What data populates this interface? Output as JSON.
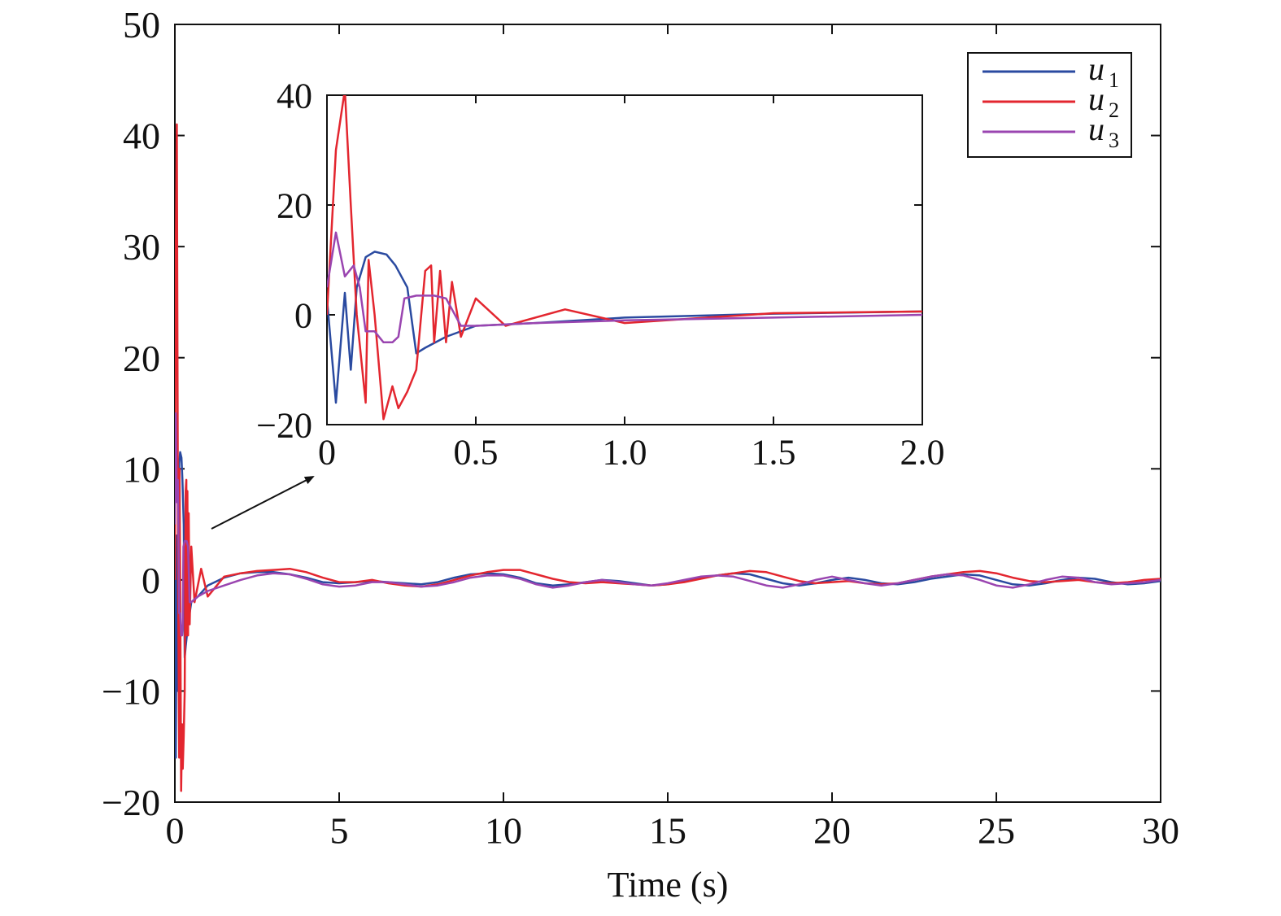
{
  "chart_data": {
    "type": "line",
    "xlabel": "Time (s)",
    "ylabel": "",
    "xlim": [
      0,
      30
    ],
    "ylim": [
      -20,
      50
    ],
    "xticks": [
      0,
      5,
      10,
      15,
      20,
      25,
      30
    ],
    "xtick_labels": [
      "0",
      "5",
      "10",
      "15",
      "20",
      "25",
      "30"
    ],
    "yticks": [
      -20,
      -10,
      0,
      10,
      20,
      30,
      40,
      50
    ],
    "ytick_labels": [
      "−20",
      "−10",
      "0",
      "10",
      "20",
      "30",
      "40",
      "50"
    ],
    "legend": {
      "placement": "top-right"
    },
    "series": [
      {
        "name": "u",
        "subscript": "1",
        "color": "#2a4aa0",
        "x": [
          0,
          0.03,
          0.06,
          0.08,
          0.1,
          0.13,
          0.16,
          0.2,
          0.23,
          0.27,
          0.3,
          0.33,
          0.4,
          0.5,
          0.7,
          1.0,
          1.5,
          2.0,
          2.5,
          3.0,
          3.5,
          4.0,
          4.5,
          5.0,
          5.5,
          6.0,
          6.5,
          7.0,
          7.5,
          8.0,
          8.5,
          9.0,
          9.5,
          10.0,
          10.5,
          11.0,
          11.5,
          12.0,
          12.5,
          13.0,
          13.5,
          14.0,
          14.5,
          15.0,
          15.5,
          16.0,
          16.5,
          17.0,
          17.5,
          18.0,
          18.5,
          19.0,
          19.5,
          20.0,
          20.5,
          21.0,
          21.5,
          22.0,
          22.5,
          23.0,
          23.5,
          24.0,
          24.5,
          25.0,
          25.5,
          26.0,
          26.5,
          27.0,
          27.5,
          28.0,
          28.5,
          29.0,
          29.5,
          30.0
        ],
        "y": [
          3,
          -16,
          4,
          -10,
          5,
          10.5,
          11.5,
          11,
          9,
          5,
          -7,
          -6,
          -4,
          -2,
          -1.5,
          -0.5,
          0.2,
          0.6,
          0.7,
          0.7,
          0.5,
          0.2,
          -0.2,
          -0.3,
          -0.2,
          -0.1,
          -0.2,
          -0.3,
          -0.4,
          -0.2,
          0.2,
          0.5,
          0.6,
          0.5,
          0.2,
          -0.3,
          -0.5,
          -0.4,
          -0.2,
          0,
          -0.1,
          -0.3,
          -0.5,
          -0.4,
          -0.1,
          0.2,
          0.4,
          0.6,
          0.5,
          0.1,
          -0.3,
          -0.5,
          -0.3,
          0,
          0.2,
          0,
          -0.3,
          -0.4,
          -0.2,
          0.1,
          0.3,
          0.5,
          0.4,
          0,
          -0.4,
          -0.5,
          -0.3,
          0,
          0.2,
          0.1,
          -0.2,
          -0.4,
          -0.3,
          -0.1
        ]
      },
      {
        "name": "u",
        "subscript": "2",
        "color": "#e3262f",
        "x": [
          0,
          0.03,
          0.06,
          0.08,
          0.1,
          0.13,
          0.14,
          0.16,
          0.19,
          0.22,
          0.24,
          0.27,
          0.3,
          0.33,
          0.35,
          0.36,
          0.38,
          0.4,
          0.42,
          0.45,
          0.5,
          0.6,
          0.8,
          1.0,
          1.5,
          2.0,
          2.5,
          3.0,
          3.5,
          4.0,
          4.5,
          5.0,
          5.5,
          6.0,
          6.5,
          7.0,
          7.5,
          8.0,
          8.5,
          9.0,
          9.5,
          10.0,
          10.5,
          11.0,
          11.5,
          12.0,
          12.5,
          13.0,
          13.5,
          14.0,
          14.5,
          15.0,
          15.5,
          16.0,
          16.5,
          17.0,
          17.5,
          18.0,
          18.5,
          19.0,
          19.5,
          20.0,
          20.5,
          21.0,
          21.5,
          22.0,
          22.5,
          23.0,
          23.5,
          24.0,
          24.5,
          25.0,
          25.5,
          26.0,
          26.5,
          27.0,
          27.5,
          28.0,
          28.5,
          29.0,
          29.5,
          30.0
        ],
        "y": [
          0,
          30,
          41,
          20,
          0,
          -16,
          10,
          0,
          -19,
          -13,
          -17,
          -14,
          -10,
          8,
          9,
          -5,
          8,
          -5,
          6,
          -4,
          3,
          -2,
          1,
          -1.5,
          0.3,
          0.6,
          0.8,
          0.9,
          1.0,
          0.7,
          0.2,
          -0.2,
          -0.2,
          0,
          -0.3,
          -0.5,
          -0.6,
          -0.4,
          0,
          0.4,
          0.7,
          0.9,
          0.9,
          0.5,
          0.1,
          -0.2,
          -0.3,
          -0.2,
          -0.3,
          -0.4,
          -0.5,
          -0.4,
          -0.2,
          0.1,
          0.4,
          0.6,
          0.8,
          0.7,
          0.3,
          -0.1,
          -0.3,
          -0.2,
          -0.1,
          -0.3,
          -0.4,
          -0.3,
          0,
          0.3,
          0.5,
          0.7,
          0.8,
          0.6,
          0.2,
          -0.1,
          -0.2,
          -0.1,
          0,
          -0.2,
          -0.3,
          -0.2,
          0,
          0.1
        ]
      },
      {
        "name": "u",
        "subscript": "3",
        "color": "#9a45b0",
        "x": [
          0,
          0.03,
          0.06,
          0.09,
          0.11,
          0.13,
          0.16,
          0.19,
          0.22,
          0.24,
          0.26,
          0.3,
          0.36,
          0.4,
          0.45,
          0.5,
          0.7,
          1.0,
          1.5,
          2.0,
          2.5,
          3.0,
          3.5,
          4.0,
          4.5,
          5.0,
          5.5,
          6.0,
          6.5,
          7.0,
          7.5,
          8.0,
          8.5,
          9.0,
          9.5,
          10.0,
          10.5,
          11.0,
          11.5,
          12.0,
          12.5,
          13.0,
          13.5,
          14.0,
          14.5,
          15.0,
          15.5,
          16.0,
          16.5,
          17.0,
          17.5,
          18.0,
          18.5,
          19.0,
          19.5,
          20.0,
          20.5,
          21.0,
          21.5,
          22.0,
          22.5,
          23.0,
          23.5,
          24.0,
          24.5,
          25.0,
          25.5,
          26.0,
          26.5,
          27.0,
          27.5,
          28.0,
          28.5,
          29.0,
          29.5,
          30.0
        ],
        "y": [
          5,
          15,
          7,
          9,
          5,
          -3,
          -3,
          -5,
          -5,
          -4,
          3,
          3.5,
          3.5,
          3,
          -2,
          -2,
          -1.5,
          -1,
          -0.5,
          0,
          0.4,
          0.6,
          0.5,
          0.1,
          -0.4,
          -0.6,
          -0.5,
          -0.2,
          -0.2,
          -0.4,
          -0.6,
          -0.5,
          -0.2,
          0.2,
          0.4,
          0.4,
          0.1,
          -0.4,
          -0.7,
          -0.5,
          -0.2,
          0,
          -0.2,
          -0.4,
          -0.5,
          -0.3,
          0,
          0.3,
          0.4,
          0.3,
          -0.1,
          -0.5,
          -0.7,
          -0.4,
          0,
          0.3,
          0,
          -0.3,
          -0.5,
          -0.3,
          0,
          0.3,
          0.5,
          0.4,
          0,
          -0.5,
          -0.7,
          -0.4,
          0,
          0.3,
          0.2,
          -0.2,
          -0.4,
          -0.3,
          -0.2,
          0
        ]
      }
    ],
    "inset": {
      "xlim": [
        0,
        2.0
      ],
      "ylim": [
        -20,
        40
      ],
      "xticks": [
        0,
        0.5,
        1.0,
        1.5,
        2.0
      ],
      "xtick_labels": [
        "0",
        "0.5",
        "1.0",
        "1.5",
        "2.0"
      ],
      "yticks": [
        -20,
        0,
        20,
        40
      ],
      "ytick_labels": [
        "−20",
        "0",
        "20",
        "40"
      ]
    }
  }
}
